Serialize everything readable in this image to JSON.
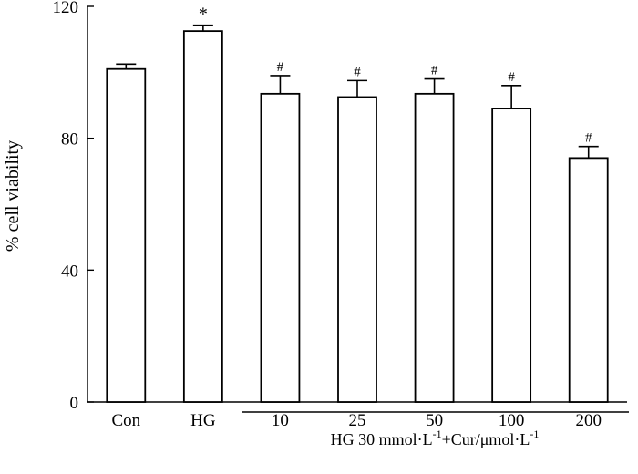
{
  "chart_data": {
    "type": "bar",
    "categories": [
      "Con",
      "HG",
      "10",
      "25",
      "50",
      "100",
      "200"
    ],
    "values": [
      101,
      112.5,
      93.5,
      92.5,
      93.5,
      89,
      74
    ],
    "errors": [
      1.5,
      1.8,
      5.5,
      5,
      4.5,
      7,
      3.5
    ],
    "significance": [
      "",
      "*",
      "#",
      "#",
      "#",
      "#",
      "#"
    ],
    "ylabel": "% cell viability",
    "ylim": [
      0,
      120
    ],
    "yticks": [
      0,
      40,
      80,
      120
    ],
    "group_label": {
      "pre": "HG 30 mmol·L",
      "sup1": "-1",
      "mid": "+Cur/μmol·L",
      "sup2": "-1"
    },
    "grid": false,
    "bar_fill": "#ffffff",
    "stroke_color": "#000000"
  }
}
